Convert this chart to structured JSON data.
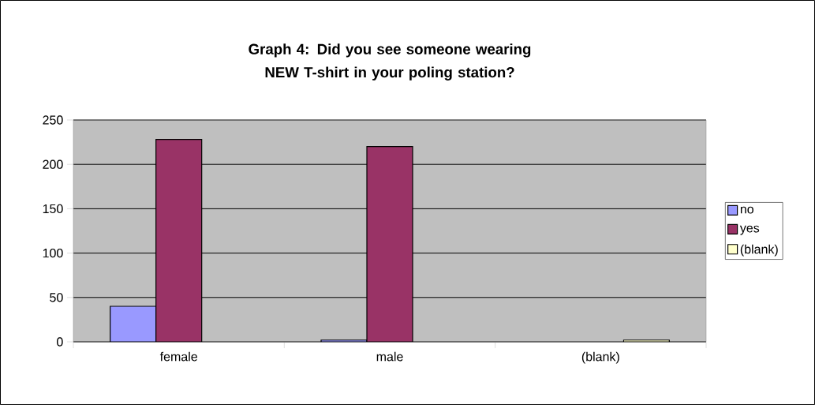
{
  "chart_data": {
    "type": "bar",
    "title": "Graph 4: Did you see someone wearing NEW T-shirt in your poling station?",
    "categories": [
      "female",
      "male",
      "(blank)"
    ],
    "series": [
      {
        "name": "no",
        "color": "#9999ff",
        "values": [
          40,
          2,
          null
        ]
      },
      {
        "name": "yes",
        "color": "#993366",
        "values": [
          228,
          220,
          null
        ]
      },
      {
        "name": "(blank)",
        "color": "#ffffcc",
        "values": [
          null,
          null,
          2
        ]
      }
    ],
    "ylim": [
      0,
      250
    ],
    "yticks": [
      0,
      50,
      100,
      150,
      200,
      250
    ],
    "grid": "y",
    "legend": "right"
  }
}
